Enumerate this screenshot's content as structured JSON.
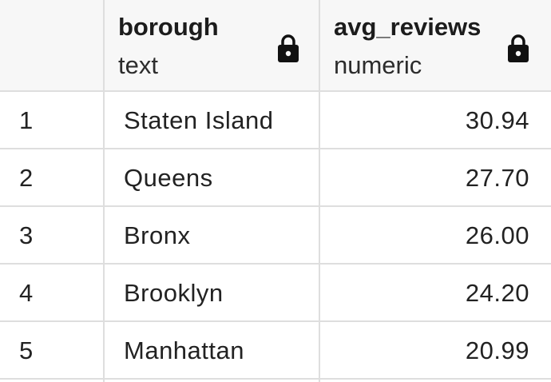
{
  "columns": [
    {
      "name": "borough",
      "type": "text",
      "icon": "lock-icon"
    },
    {
      "name": "avg_reviews",
      "type": "numeric",
      "icon": "lock-icon"
    }
  ],
  "rows": [
    {
      "index": "1",
      "borough": "Staten Island",
      "avg_reviews": "30.94"
    },
    {
      "index": "2",
      "borough": "Queens",
      "avg_reviews": "27.70"
    },
    {
      "index": "3",
      "borough": "Bronx",
      "avg_reviews": "26.00"
    },
    {
      "index": "4",
      "borough": "Brooklyn",
      "avg_reviews": "24.20"
    },
    {
      "index": "5",
      "borough": "Manhattan",
      "avg_reviews": "20.99"
    }
  ],
  "colors": {
    "header_bg": "#f7f7f7",
    "grid_line": "#dedede",
    "text": "#222222"
  }
}
